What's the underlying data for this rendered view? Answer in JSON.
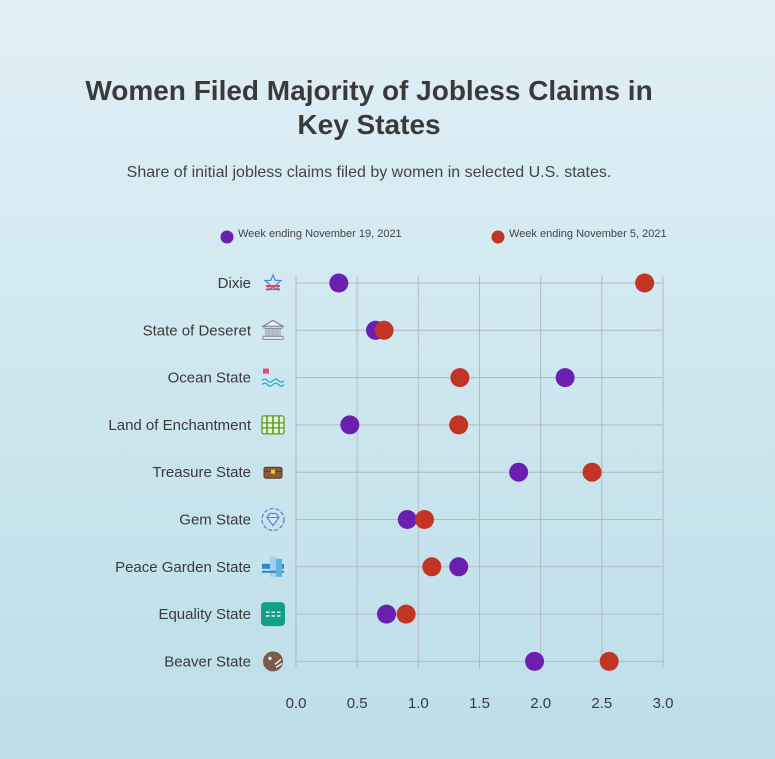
{
  "chart_data": {
    "type": "scatter",
    "title": "Women Filed Majority of Jobless Claims in Key States",
    "subtitle": "Share of initial jobless claims filed by women in selected U.S. states.",
    "categories": [
      "Dixie",
      "State of Deseret",
      "Ocean State",
      "Land of Enchantment",
      "Treasure State",
      "Gem State",
      "Peace Garden State",
      "Equality State",
      "Beaver State"
    ],
    "category_icons": [
      "star-flag-icon",
      "capitol-building-icon",
      "ocean-waves-icon",
      "fence-icon",
      "treasure-chest-icon",
      "gem-icon",
      "peace-garden-icon",
      "equality-sign-icon",
      "beaver-icon"
    ],
    "series": [
      {
        "name": "Week ending November 19, 2021",
        "color": "#6a1fb0",
        "values": [
          0.35,
          0.65,
          2.2,
          0.44,
          1.82,
          0.91,
          1.33,
          0.74,
          1.95
        ]
      },
      {
        "name": "Week ending November 5, 2021",
        "color": "#c23424",
        "values": [
          2.85,
          0.72,
          1.34,
          1.33,
          2.42,
          1.05,
          1.11,
          0.9,
          2.56
        ]
      }
    ],
    "xlim": [
      0,
      3
    ],
    "xticks": [
      "0.0",
      "0.5",
      "1.0",
      "1.5",
      "2.0",
      "2.5",
      "3.0"
    ],
    "xlabel": "",
    "ylabel": "",
    "grid": true,
    "legend_position": "top"
  }
}
